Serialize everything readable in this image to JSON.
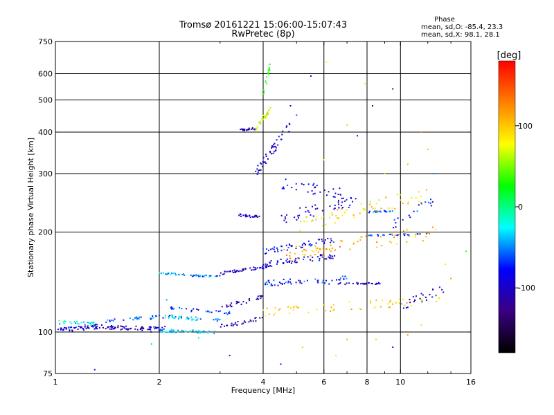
{
  "header": {
    "title_line1": "Tromsø 20161221 15:06:00-15:07:43",
    "title_line2": "RwPretec (8p)"
  },
  "phase_info": {
    "heading": "Phase",
    "o_line": "mean, sd,O: -85.4, 23.3",
    "x_line": "mean, sd,X:  98.1, 28.1"
  },
  "colorbar": {
    "unit_label": "[deg]",
    "range": [
      -180,
      180
    ],
    "ticks": [
      {
        "value": 100,
        "label": "100"
      },
      {
        "value": 0,
        "label": "0"
      },
      {
        "value": -100,
        "label": "-100"
      }
    ],
    "colors": [
      "#000000",
      "#3a0080",
      "#0000ff",
      "#00ffff",
      "#00ff00",
      "#ffff00",
      "#ff8000",
      "#ff0000"
    ]
  },
  "chart_data": {
    "type": "scatter",
    "title": "Tromsø 20161221 15:06:00-15:07:43",
    "subtitle": "RwPretec (8p)",
    "xlabel": "Frequency [MHz]",
    "ylabel": "Stationary phase Virtual Height [km]",
    "x_scale": "log",
    "y_scale": "log",
    "xlim": [
      1,
      16
    ],
    "ylim": [
      75,
      750
    ],
    "x_ticks": [
      {
        "value": 1,
        "label": "1"
      },
      {
        "value": 2,
        "label": "2"
      },
      {
        "value": 4,
        "label": "4"
      },
      {
        "value": 6,
        "label": "6"
      },
      {
        "value": 8,
        "label": "8"
      },
      {
        "value": 10,
        "label": "10"
      },
      {
        "value": 16,
        "label": "16"
      }
    ],
    "x_minor_ticks": [
      3,
      5,
      7,
      9,
      12,
      14
    ],
    "x_grid": [
      2,
      4,
      6,
      8,
      10
    ],
    "y_ticks": [
      {
        "value": 75,
        "label": "75"
      },
      {
        "value": 100,
        "label": "100"
      },
      {
        "value": 200,
        "label": "200"
      },
      {
        "value": 300,
        "label": "300"
      },
      {
        "value": 400,
        "label": "400"
      },
      {
        "value": 500,
        "label": "500"
      },
      {
        "value": 600,
        "label": "600"
      },
      {
        "value": 750,
        "label": "750"
      }
    ],
    "y_grid": [
      100,
      200,
      300,
      400,
      500,
      600
    ],
    "grid": true,
    "color_variable": "phase [deg]",
    "traces": [
      {
        "f_start": 1.0,
        "f_end": 1.35,
        "h_start": 101,
        "h_end": 104,
        "phase": -95,
        "n": 55,
        "spread": 0.015
      },
      {
        "f_start": 1.02,
        "f_end": 1.3,
        "h_start": 107,
        "h_end": 106,
        "phase": -30,
        "n": 25,
        "spread": 0.012
      },
      {
        "f_start": 1.3,
        "f_end": 2.0,
        "h_start": 104,
        "h_end": 102,
        "phase": -110,
        "n": 60,
        "spread": 0.015
      },
      {
        "f_start": 1.4,
        "f_end": 2.2,
        "h_start": 108,
        "h_end": 112,
        "phase": -60,
        "n": 30,
        "spread": 0.012
      },
      {
        "f_start": 1.85,
        "f_end": 2.1,
        "h_start": 101,
        "h_end": 103,
        "phase": -95,
        "n": 14,
        "spread": 0.015
      },
      {
        "f_start": 2.0,
        "f_end": 2.9,
        "h_start": 101,
        "h_end": 100,
        "phase": -30,
        "n": 45,
        "spread": 0.012
      },
      {
        "f_start": 2.0,
        "f_end": 3.0,
        "h_start": 112,
        "h_end": 108,
        "phase": -40,
        "n": 40,
        "spread": 0.012
      },
      {
        "f_start": 2.1,
        "f_end": 3.2,
        "h_start": 118,
        "h_end": 114,
        "phase": -70,
        "n": 30,
        "spread": 0.012
      },
      {
        "f_start": 2.0,
        "f_end": 2.4,
        "h_start": 150,
        "h_end": 149,
        "phase": -35,
        "n": 22,
        "spread": 0.006
      },
      {
        "f_start": 2.4,
        "f_end": 3.0,
        "h_start": 148,
        "h_end": 147,
        "phase": -55,
        "n": 28,
        "spread": 0.006
      },
      {
        "f_start": 3.0,
        "f_end": 4.2,
        "h_start": 150,
        "h_end": 158,
        "phase": -100,
        "n": 45,
        "spread": 0.01
      },
      {
        "f_start": 3.0,
        "f_end": 4.0,
        "h_start": 104,
        "h_end": 110,
        "phase": -115,
        "n": 28,
        "spread": 0.015
      },
      {
        "f_start": 3.0,
        "f_end": 4.0,
        "h_start": 118,
        "h_end": 128,
        "phase": -115,
        "n": 30,
        "spread": 0.015
      },
      {
        "f_start": 3.4,
        "f_end": 3.9,
        "h_start": 225,
        "h_end": 222,
        "phase": -100,
        "n": 26,
        "spread": 0.008
      },
      {
        "f_start": 3.4,
        "f_end": 3.8,
        "h_start": 405,
        "h_end": 410,
        "phase": -100,
        "n": 20,
        "spread": 0.008
      },
      {
        "f_start": 3.8,
        "f_end": 4.2,
        "h_start": 410,
        "h_end": 470,
        "phase": 75,
        "n": 30,
        "spread": 0.02
      },
      {
        "f_start": 4.0,
        "f_end": 4.2,
        "h_start": 520,
        "h_end": 640,
        "phase": 30,
        "n": 18,
        "spread": 0.02
      },
      {
        "f_start": 3.8,
        "f_end": 4.8,
        "h_start": 300,
        "h_end": 420,
        "phase": -100,
        "n": 50,
        "spread": 0.035
      },
      {
        "f_start": 4.0,
        "f_end": 6.5,
        "h_start": 160,
        "h_end": 170,
        "phase": -90,
        "n": 60,
        "spread": 0.02
      },
      {
        "f_start": 4.0,
        "f_end": 6.5,
        "h_start": 175,
        "h_end": 190,
        "phase": -80,
        "n": 50,
        "spread": 0.02
      },
      {
        "f_start": 4.0,
        "f_end": 7.0,
        "h_start": 140,
        "h_end": 145,
        "phase": -75,
        "n": 50,
        "spread": 0.02
      },
      {
        "f_start": 4.5,
        "f_end": 7.5,
        "h_start": 220,
        "h_end": 250,
        "phase": -95,
        "n": 45,
        "spread": 0.04
      },
      {
        "f_start": 4.5,
        "f_end": 7.0,
        "h_start": 280,
        "h_end": 260,
        "phase": -90,
        "n": 35,
        "spread": 0.04
      },
      {
        "f_start": 6.0,
        "f_end": 9.0,
        "h_start": 140,
        "h_end": 140,
        "phase": -100,
        "n": 30,
        "spread": 0.006
      },
      {
        "f_start": 8.0,
        "f_end": 9.6,
        "h_start": 230,
        "h_end": 232,
        "phase": -65,
        "n": 20,
        "spread": 0.006
      },
      {
        "f_start": 8.0,
        "f_end": 12.0,
        "h_start": 195,
        "h_end": 198,
        "phase": -60,
        "n": 30,
        "spread": 0.006
      },
      {
        "f_start": 4.0,
        "f_end": 13.0,
        "h_start": 115,
        "h_end": 125,
        "phase": 95,
        "n": 60,
        "spread": 0.03
      },
      {
        "f_start": 4.5,
        "f_end": 13.0,
        "h_start": 170,
        "h_end": 200,
        "phase": 110,
        "n": 80,
        "spread": 0.05
      },
      {
        "f_start": 5.0,
        "f_end": 12.0,
        "h_start": 210,
        "h_end": 260,
        "phase": 90,
        "n": 60,
        "spread": 0.05
      },
      {
        "f_start": 10.0,
        "f_end": 13.5,
        "h_start": 120,
        "h_end": 135,
        "phase": -90,
        "n": 25,
        "spread": 0.03
      },
      {
        "f_start": 9.5,
        "f_end": 12.5,
        "h_start": 210,
        "h_end": 250,
        "phase": -80,
        "n": 18,
        "spread": 0.03
      }
    ],
    "scatter_points": [
      {
        "f": 4.1,
        "h": 560,
        "phase": 40
      },
      {
        "f": 5.5,
        "h": 590,
        "phase": -100
      },
      {
        "f": 6.1,
        "h": 650,
        "phase": 80
      },
      {
        "f": 7.9,
        "h": 560,
        "phase": 90
      },
      {
        "f": 9.5,
        "h": 540,
        "phase": -110
      },
      {
        "f": 8.3,
        "h": 480,
        "phase": -110
      },
      {
        "f": 7.5,
        "h": 390,
        "phase": -100
      },
      {
        "f": 11.5,
        "h": 400,
        "phase": 130
      },
      {
        "f": 12.0,
        "h": 355,
        "phase": 110
      },
      {
        "f": 15.5,
        "h": 175,
        "phase": 30
      },
      {
        "f": 1.3,
        "h": 77,
        "phase": -90
      },
      {
        "f": 3.2,
        "h": 85,
        "phase": -100
      },
      {
        "f": 4.5,
        "h": 80,
        "phase": -100
      },
      {
        "f": 5.2,
        "h": 90,
        "phase": 100
      },
      {
        "f": 6.5,
        "h": 85,
        "phase": 90
      },
      {
        "f": 7.0,
        "h": 95,
        "phase": 110
      },
      {
        "f": 8.5,
        "h": 95,
        "phase": 100
      },
      {
        "f": 9.5,
        "h": 90,
        "phase": -90
      },
      {
        "f": 10.5,
        "h": 98,
        "phase": 120
      },
      {
        "f": 11.5,
        "h": 105,
        "phase": 90
      },
      {
        "f": 6.0,
        "h": 330,
        "phase": 80
      },
      {
        "f": 5.0,
        "h": 450,
        "phase": -60
      },
      {
        "f": 4.8,
        "h": 480,
        "phase": -100
      },
      {
        "f": 9.0,
        "h": 300,
        "phase": 100
      },
      {
        "f": 10.5,
        "h": 320,
        "phase": 110
      },
      {
        "f": 7.0,
        "h": 420,
        "phase": 100
      },
      {
        "f": 13.5,
        "h": 160,
        "phase": 90
      },
      {
        "f": 14.0,
        "h": 145,
        "phase": 120
      },
      {
        "f": 12.5,
        "h": 300,
        "phase": -50
      },
      {
        "f": 2.1,
        "h": 125,
        "phase": -45
      },
      {
        "f": 1.9,
        "h": 92,
        "phase": -40
      },
      {
        "f": 2.6,
        "h": 96,
        "phase": -30
      }
    ]
  }
}
